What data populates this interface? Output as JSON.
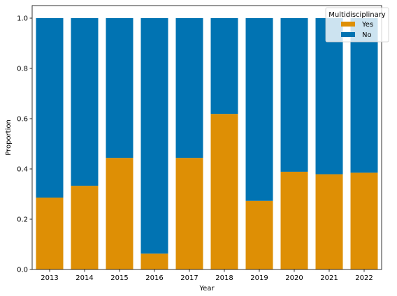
{
  "chart_data": {
    "type": "bar",
    "stacked": true,
    "categories": [
      "2013",
      "2014",
      "2015",
      "2016",
      "2017",
      "2018",
      "2019",
      "2020",
      "2021",
      "2022"
    ],
    "series": [
      {
        "name": "Yes",
        "color": "#DE8F05",
        "values": [
          0.286,
          0.333,
          0.444,
          0.063,
          0.444,
          0.619,
          0.273,
          0.389,
          0.379,
          0.385
        ]
      },
      {
        "name": "No",
        "color": "#0173B2",
        "values": [
          0.714,
          0.667,
          0.556,
          0.937,
          0.556,
          0.381,
          0.727,
          0.611,
          0.621,
          0.615
        ]
      }
    ],
    "xlabel": "Year",
    "ylabel": "Proportion",
    "ylim": [
      0,
      1.05
    ],
    "yticks": [
      "0.0",
      "0.2",
      "0.4",
      "0.6",
      "0.8",
      "1.0"
    ],
    "legend": {
      "title": "Multidisciplinary",
      "placement": "top-right"
    },
    "grid": false
  }
}
